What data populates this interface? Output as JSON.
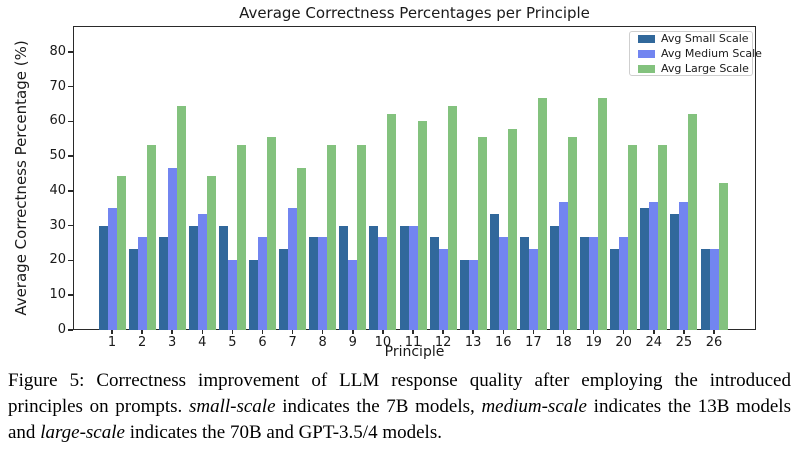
{
  "chart_data": {
    "type": "bar",
    "title": "Average Correctness Percentages per Principle",
    "xlabel": "Principle",
    "ylabel": "Average Correctness Percentage (%)",
    "ylim": [
      0,
      87.4
    ],
    "yticks": [
      0,
      10,
      20,
      30,
      40,
      50,
      60,
      70,
      80
    ],
    "grid": false,
    "legend_position": "upper right",
    "categories": [
      "1",
      "2",
      "3",
      "4",
      "5",
      "6",
      "7",
      "8",
      "9",
      "10",
      "11",
      "12",
      "13",
      "16",
      "17",
      "18",
      "19",
      "20",
      "24",
      "25",
      "26"
    ],
    "series": [
      {
        "name": "Avg Small Scale",
        "key": "small",
        "color": "#31689b",
        "values": [
          30,
          23.3,
          26.7,
          30,
          30,
          20,
          23.3,
          26.7,
          30,
          30,
          30,
          26.7,
          20,
          33.3,
          26.7,
          30,
          26.7,
          23.3,
          35,
          33.3,
          23.3
        ]
      },
      {
        "name": "Avg Medium Scale",
        "key": "medium",
        "color": "#7285f0",
        "values": [
          35,
          26.7,
          46.7,
          33.3,
          20,
          26.7,
          35,
          26.7,
          20,
          26.7,
          30,
          23.3,
          20,
          26.7,
          23.3,
          36.7,
          26.7,
          26.7,
          36.7,
          36.7,
          23.3
        ]
      },
      {
        "name": "Avg Large Scale",
        "key": "large",
        "color": "#83c27e",
        "values": [
          44.4,
          53.3,
          64.4,
          44.4,
          53.3,
          55.6,
          46.7,
          53.3,
          53.3,
          62.2,
          60,
          64.4,
          55.6,
          57.8,
          66.7,
          55.6,
          66.7,
          53.3,
          53.3,
          62.2,
          42.2
        ]
      }
    ]
  },
  "figure": {
    "caption_segments": [
      {
        "text": "Figure 5: Correctness improvement of LLM response quality after employing the introduced principles on prompts. ",
        "italic": false
      },
      {
        "text": "small-scale",
        "italic": true
      },
      {
        "text": " indicates the 7B models, ",
        "italic": false
      },
      {
        "text": "medium-scale",
        "italic": true
      },
      {
        "text": " indicates the 13B models and ",
        "italic": false
      },
      {
        "text": "large-scale",
        "italic": true
      },
      {
        "text": " indicates the 70B and GPT-3.5/4 models.",
        "italic": false
      }
    ]
  }
}
